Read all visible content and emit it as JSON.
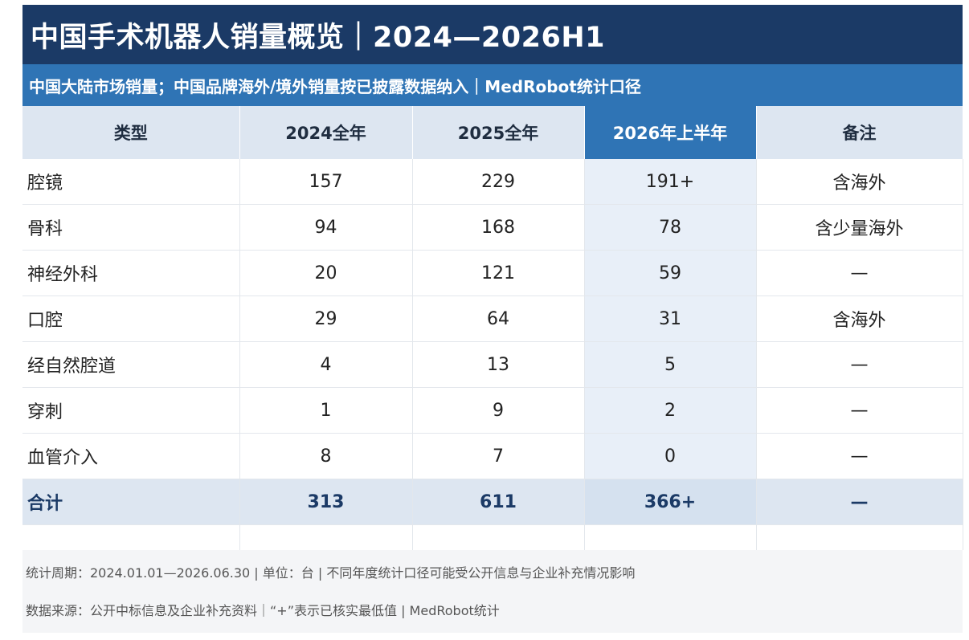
{
  "title": "中国手术机器人销量概览｜2024—2026H1",
  "subtitle": "中国大陆市场销量；中国品牌海外/境外销量按已披露数据纳入｜MedRobot统计口径",
  "columns": [
    "类型",
    "2024全年",
    "2025全年",
    "2026年上半年",
    "备注"
  ],
  "rows": [
    {
      "type": "腔镜",
      "y2024": "157",
      "y2025": "229",
      "h2026": "191+",
      "note": "含海外"
    },
    {
      "type": "骨科",
      "y2024": "94",
      "y2025": "168",
      "h2026": "78",
      "note": "含少量海外"
    },
    {
      "type": "神经外科",
      "y2024": "20",
      "y2025": "121",
      "h2026": "59",
      "note": "—"
    },
    {
      "type": "口腔",
      "y2024": "29",
      "y2025": "64",
      "h2026": "31",
      "note": "含海外"
    },
    {
      "type": "经自然腔道",
      "y2024": "4",
      "y2025": "13",
      "h2026": "5",
      "note": "—"
    },
    {
      "type": "穿刺",
      "y2024": "1",
      "y2025": "9",
      "h2026": "2",
      "note": "—"
    },
    {
      "type": "血管介入",
      "y2024": "8",
      "y2025": "7",
      "h2026": "0",
      "note": "—"
    }
  ],
  "total": {
    "type": "合计",
    "y2024": "313",
    "y2025": "611",
    "h2026": "366+",
    "note": "—"
  },
  "footer": {
    "line1": "统计周期：2024.01.01—2026.06.30 | 单位：台 | 不同年度统计口径可能受公开信息与企业补充情况影响",
    "line2": "数据来源：公开中标信息及企业补充资料｜“+”表示已核实最低值 | MedRobot统计"
  },
  "colors": {
    "header_dark": "#1b3a66",
    "header_blue": "#2f74b5",
    "header_light": "#dde6f1",
    "highlight_col": "#e8eff8"
  },
  "chart_data": {
    "type": "table",
    "title": "中国手术机器人销量概览｜2024—2026H1",
    "columns": [
      "类型",
      "2024全年",
      "2025全年",
      "2026年上半年",
      "备注"
    ],
    "rows": [
      [
        "腔镜",
        "157",
        "229",
        "191+",
        "含海外"
      ],
      [
        "骨科",
        "94",
        "168",
        "78",
        "含少量海外"
      ],
      [
        "神经外科",
        "20",
        "121",
        "59",
        "—"
      ],
      [
        "口腔",
        "29",
        "64",
        "31",
        "含海外"
      ],
      [
        "经自然腔道",
        "4",
        "13",
        "5",
        "—"
      ],
      [
        "穿刺",
        "1",
        "9",
        "2",
        "—"
      ],
      [
        "血管介入",
        "8",
        "7",
        "0",
        "—"
      ],
      [
        "合计",
        "313",
        "611",
        "366+",
        "—"
      ]
    ]
  }
}
